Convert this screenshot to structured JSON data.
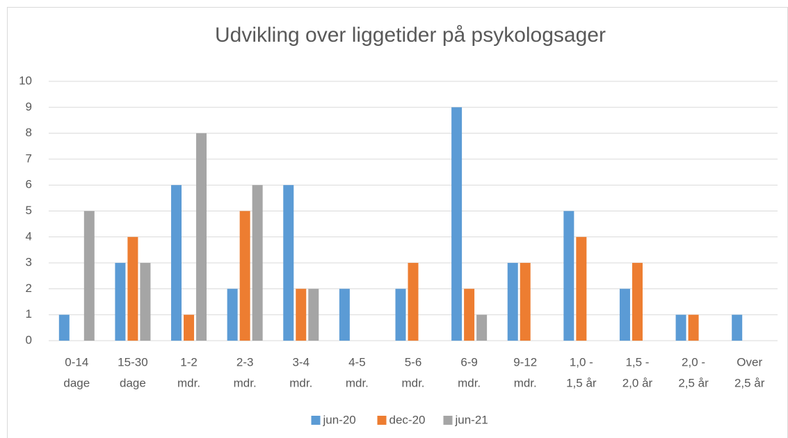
{
  "chart_data": {
    "type": "bar",
    "title": "Udvikling over liggetider på psykologsager",
    "categories": [
      [
        "0-14",
        "dage"
      ],
      [
        "15-30",
        "dage"
      ],
      [
        "1-2",
        "mdr."
      ],
      [
        "2-3",
        "mdr."
      ],
      [
        "3-4",
        "mdr."
      ],
      [
        "4-5",
        "mdr."
      ],
      [
        "5-6",
        "mdr."
      ],
      [
        "6-9",
        "mdr."
      ],
      [
        "9-12",
        "mdr."
      ],
      [
        "1,0 -",
        "1,5 år"
      ],
      [
        "1,5 -",
        "2,0 år"
      ],
      [
        "2,0 -",
        "2,5 år"
      ],
      [
        "Over",
        "2,5 år"
      ]
    ],
    "series": [
      {
        "name": "jun-20",
        "color": "#5b9bd5",
        "values": [
          1,
          3,
          6,
          2,
          6,
          2,
          2,
          9,
          3,
          5,
          2,
          1,
          1
        ]
      },
      {
        "name": "dec-20",
        "color": "#ed7d31",
        "values": [
          0,
          4,
          1,
          5,
          2,
          0,
          3,
          2,
          3,
          4,
          3,
          1,
          0
        ]
      },
      {
        "name": "jun-21",
        "color": "#a5a5a5",
        "values": [
          5,
          3,
          8,
          6,
          2,
          0,
          0,
          1,
          0,
          0,
          0,
          0,
          0
        ]
      }
    ],
    "ylim": [
      0,
      10
    ],
    "yticks": [
      0,
      1,
      2,
      3,
      4,
      5,
      6,
      7,
      8,
      9,
      10
    ],
    "grid": true,
    "legend": "bottom"
  }
}
